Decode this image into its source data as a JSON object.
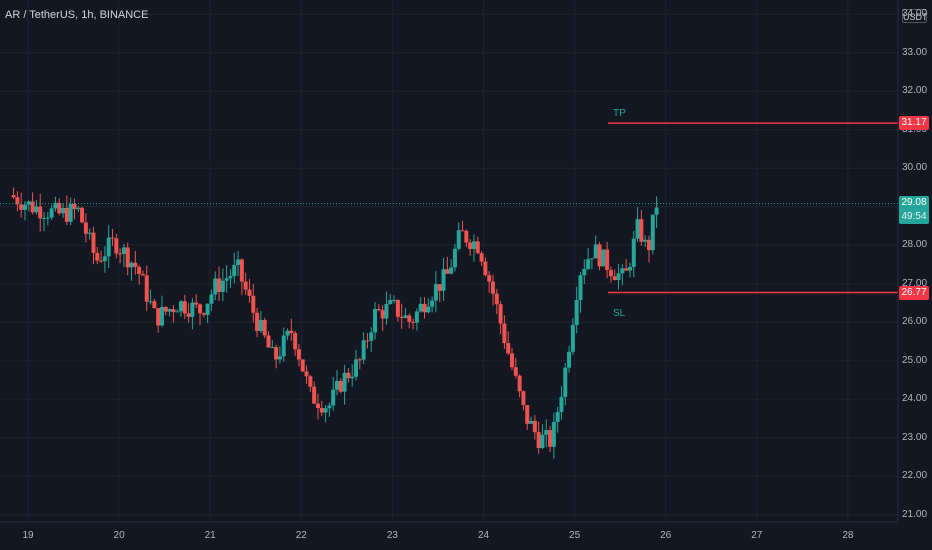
{
  "header": {
    "symbol": "AR / TetherUS, 1h, BINANCE",
    "currency": "USDT"
  },
  "colors": {
    "background": "#131722",
    "grid": "#1e222d",
    "up": "#26a69a",
    "down": "#ef5350",
    "level_line": "#f23645",
    "last_price_badge": "#26a69a",
    "level_badge": "#f23645",
    "label": "#26a69a"
  },
  "levels": {
    "tp": {
      "label": "TP",
      "price": 31.17,
      "badge": "31.17"
    },
    "sl": {
      "label": "SL",
      "price": 26.77,
      "badge": "26.77"
    }
  },
  "last_price": {
    "price": 29.08,
    "badge": "29.08",
    "countdown": "49:54"
  },
  "chart_data": {
    "type": "candlestick",
    "title": "AR / TetherUS, 1h, BINANCE",
    "ylim": [
      20.7,
      34.1
    ],
    "xlim": [
      18.8,
      29.15
    ],
    "yticks": [
      "21.00",
      "22.00",
      "23.00",
      "24.00",
      "25.00",
      "26.00",
      "27.00",
      "28.00",
      "29.00",
      "30.00",
      "31.00",
      "32.00",
      "33.00",
      "34.00"
    ],
    "xticks": [
      "19",
      "20",
      "21",
      "22",
      "23",
      "24",
      "25",
      "26",
      "27",
      "28"
    ],
    "waypoints": [
      [
        18.8,
        29.3
      ],
      [
        19.05,
        29.0
      ],
      [
        19.35,
        28.8
      ],
      [
        19.55,
        28.9
      ],
      [
        19.75,
        27.6
      ],
      [
        19.95,
        28.1
      ],
      [
        20.2,
        27.4
      ],
      [
        20.4,
        26.1
      ],
      [
        20.65,
        26.5
      ],
      [
        20.9,
        26.3
      ],
      [
        21.05,
        26.9
      ],
      [
        21.3,
        27.4
      ],
      [
        21.5,
        26.1
      ],
      [
        21.7,
        25.0
      ],
      [
        21.9,
        25.8
      ],
      [
        22.1,
        24.1
      ],
      [
        22.3,
        23.8
      ],
      [
        22.45,
        24.5
      ],
      [
        22.65,
        25.0
      ],
      [
        22.8,
        26.2
      ],
      [
        23.0,
        26.4
      ],
      [
        23.2,
        26.0
      ],
      [
        23.4,
        26.7
      ],
      [
        23.6,
        27.2
      ],
      [
        23.75,
        28.3
      ],
      [
        23.95,
        28.0
      ],
      [
        24.1,
        26.8
      ],
      [
        24.25,
        25.4
      ],
      [
        24.45,
        23.6
      ],
      [
        24.6,
        23.0
      ],
      [
        24.75,
        22.9
      ],
      [
        24.9,
        24.8
      ],
      [
        25.05,
        27.3
      ],
      [
        25.2,
        27.9
      ],
      [
        25.4,
        27.4
      ],
      [
        25.55,
        27.1
      ],
      [
        25.7,
        28.5
      ],
      [
        25.8,
        27.8
      ],
      [
        25.9,
        29.08
      ]
    ],
    "candle_count": 170,
    "price_range_note": ""
  }
}
